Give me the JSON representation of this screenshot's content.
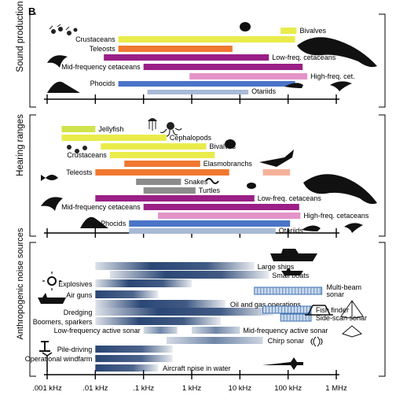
{
  "panel_letter": "B",
  "chart_data": {
    "type": "bar",
    "xscale": "log",
    "xlim": [
      "0.001",
      "1000"
    ],
    "x_unit": "kHz",
    "x_ticks": [
      {
        "value": 0.001,
        "label": ".001 kHz"
      },
      {
        "value": 0.01,
        "label": ".01 kHz"
      },
      {
        "value": 0.1,
        "label": ".1 kHz"
      },
      {
        "value": 1,
        "label": "1 kHz"
      },
      {
        "value": 10,
        "label": "10 kHz"
      },
      {
        "value": 100,
        "label": "100 kHz"
      },
      {
        "value": 1000,
        "label": "1 MHz"
      }
    ],
    "panels": [
      {
        "ylabel": "Sound production",
        "series": [
          {
            "name": "Bivalves",
            "range": [
              70,
              150
            ],
            "color": "#e9ec4a"
          },
          {
            "name": "Crustaceans",
            "range": [
              0.03,
              140
            ],
            "color": "#e9ec4a"
          },
          {
            "name": "Teleosts",
            "range": [
              0.03,
              7
            ],
            "color": "#f07830"
          },
          {
            "name": "Low-freq. cetaceans",
            "range": [
              0.015,
              40
            ],
            "color": "#9a1f86"
          },
          {
            "name": "Mid-frequency cetaceans",
            "range": [
              0.1,
              200
            ],
            "color": "#9a1f86"
          },
          {
            "name": "High-freq. cet.",
            "range": [
              0.9,
              250
            ],
            "color": "#e393c8"
          },
          {
            "name": "Phocids",
            "range": [
              0.03,
              140
            ],
            "color": "#4a74c8"
          },
          {
            "name": "Otariids",
            "range": [
              0.12,
              15
            ],
            "color": "#a9bad6"
          }
        ]
      },
      {
        "ylabel": "Hearing ranges",
        "series": [
          {
            "name": "Jellyfish",
            "range": [
              0.002,
              0.01
            ],
            "color": "#cfe34a"
          },
          {
            "name": "Cephalopods",
            "range": [
              0.002,
              0.3
            ],
            "color": "#e9ec4a"
          },
          {
            "name": "Bivalves",
            "range": [
              0.013,
              2
            ],
            "color": "#e9ec4a"
          },
          {
            "name": "Crustaceans",
            "range": [
              0.02,
              3
            ],
            "color": "#e9ec4a"
          },
          {
            "name": "Elasmobranchs",
            "range": [
              0.04,
              1.5
            ],
            "color": "#f07830"
          },
          {
            "name": "Teleosts",
            "range": [
              0.01,
              6
            ],
            "color": "#f07830"
          },
          {
            "name": "",
            "range": [
              30,
              110
            ],
            "color": "#f5b29a"
          },
          {
            "name": "Snakes",
            "range": [
              0.07,
              0.6
            ],
            "color": "#8c8c8c"
          },
          {
            "name": "Turtles",
            "range": [
              0.1,
              1.2
            ],
            "color": "#8c8c8c"
          },
          {
            "name": "Low-freq. cetaceans",
            "range": [
              0.01,
              20
            ],
            "color": "#9a1f86"
          },
          {
            "name": "Mid-frequency cetaceans",
            "range": [
              0.1,
              170
            ],
            "color": "#9a1f86"
          },
          {
            "name": "High-freq. cetaceans",
            "range": [
              0.2,
              180
            ],
            "color": "#e393c8"
          },
          {
            "name": "Phocids",
            "range": [
              0.05,
              110
            ],
            "color": "#4a74c8"
          },
          {
            "name": "Otariids",
            "range": [
              0.05,
              55
            ],
            "color": "#a9bad6"
          }
        ]
      },
      {
        "ylabel": "Anthropogenic noise sources",
        "series": [
          {
            "name": "Large ships",
            "range": [
              0.01,
              20
            ],
            "color": "#1f3d6e"
          },
          {
            "name": "Small boats",
            "range": [
              0.02,
              40
            ],
            "color": "#1f3d6e"
          },
          {
            "name": "Multi-beam sonar",
            "range": [
              20,
              500
            ],
            "color": "#c9d8ec"
          },
          {
            "name": "Explosives",
            "range": [
              0.01,
              1
            ],
            "color": "#1f3d6e"
          },
          {
            "name": "Air guns",
            "range": [
              0.01,
              0.2
            ],
            "color": "#1f3d6e"
          },
          {
            "name": "Oil and gas operations",
            "range": [
              0.01,
              5
            ],
            "color": "#1f3d6e"
          },
          {
            "name": "Dredging",
            "range": [
              0.01,
              50
            ],
            "color": "#1f3d6e"
          },
          {
            "name": "Fish finder",
            "range": [
              30,
              300
            ],
            "color": "#c9d8ec"
          },
          {
            "name": "Boomers, sparkers",
            "range": [
              0.01,
              4
            ],
            "color": "#1f3d6e"
          },
          {
            "name": "Side-scan sonar",
            "range": [
              70,
              300
            ],
            "color": "#c9d8ec"
          },
          {
            "name": "Low-frequency active sonar",
            "range": [
              0.1,
              0.5
            ],
            "color": "#6f86a8"
          },
          {
            "name": "Mid-frequency active sonar",
            "range": [
              1,
              10
            ],
            "color": "#6f86a8"
          },
          {
            "name": "Chirp sonar",
            "range": [
              0.3,
              30
            ],
            "color": "#6f86a8"
          },
          {
            "name": "Pile-driving",
            "range": [
              0.01,
              0.4
            ],
            "color": "#1f3d6e"
          },
          {
            "name": "Operational windfarm",
            "range": [
              0.01,
              0.4
            ],
            "color": "#1f3d6e"
          },
          {
            "name": "Aircraft noise in water",
            "range": [
              0.01,
              0.2
            ],
            "color": "#1f3d6e"
          }
        ]
      }
    ]
  }
}
